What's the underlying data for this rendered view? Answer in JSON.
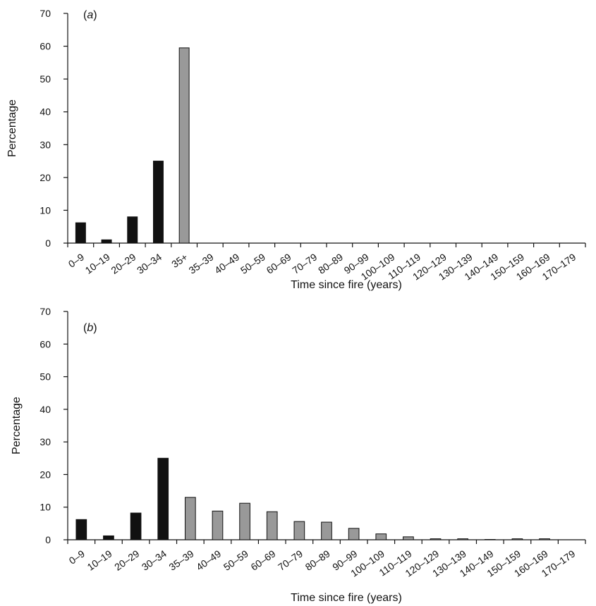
{
  "chart_data": [
    {
      "type": "bar",
      "panel_label": "a",
      "xlabel": "Time since fire (years)",
      "ylabel": "Percentage",
      "ylim": [
        0,
        70
      ],
      "yticks": [
        0,
        10,
        20,
        30,
        40,
        50,
        60,
        70
      ],
      "categories": [
        "0–9",
        "10–19",
        "20–29",
        "30–34",
        "35+",
        "35–39",
        "40–49",
        "50–59",
        "60–69",
        "70–79",
        "80–89",
        "90–99",
        "100–109",
        "110–119",
        "120–129",
        "130–139",
        "140–149",
        "150–159",
        "160–169",
        "170–179"
      ],
      "values": [
        6.2,
        1.0,
        8.0,
        25.0,
        59.5,
        null,
        null,
        null,
        null,
        null,
        null,
        null,
        null,
        null,
        null,
        null,
        null,
        null,
        null,
        null
      ],
      "bar_colors": [
        "#111111",
        "#111111",
        "#111111",
        "#111111",
        "#999999",
        "#999999",
        "#999999",
        "#999999",
        "#999999",
        "#999999",
        "#999999",
        "#999999",
        "#999999",
        "#999999",
        "#999999",
        "#999999",
        "#999999",
        "#999999",
        "#999999",
        "#999999"
      ],
      "grid": false
    },
    {
      "type": "bar",
      "panel_label": "b",
      "xlabel": "Time since fire (years)",
      "ylabel": "Percentage",
      "ylim": [
        0,
        70
      ],
      "yticks": [
        0,
        10,
        20,
        30,
        40,
        50,
        60,
        70
      ],
      "categories": [
        "0–9",
        "10–19",
        "20–29",
        "30–34",
        "35–39",
        "40–49",
        "50–59",
        "60–69",
        "70–79",
        "80–89",
        "90–99",
        "100–109",
        "110–119",
        "120–129",
        "130–139",
        "140–149",
        "150–159",
        "160–169",
        "170–179"
      ],
      "values": [
        6.2,
        1.2,
        8.2,
        25.0,
        13.0,
        8.8,
        11.2,
        8.6,
        5.6,
        5.4,
        3.5,
        1.8,
        0.9,
        0.3,
        0.3,
        0.1,
        0.3,
        0.3,
        null
      ],
      "bar_colors": [
        "#111111",
        "#111111",
        "#111111",
        "#111111",
        "#999999",
        "#999999",
        "#999999",
        "#999999",
        "#999999",
        "#999999",
        "#999999",
        "#999999",
        "#999999",
        "#999999",
        "#999999",
        "#999999",
        "#999999",
        "#999999",
        "#999999"
      ],
      "grid": false
    }
  ]
}
